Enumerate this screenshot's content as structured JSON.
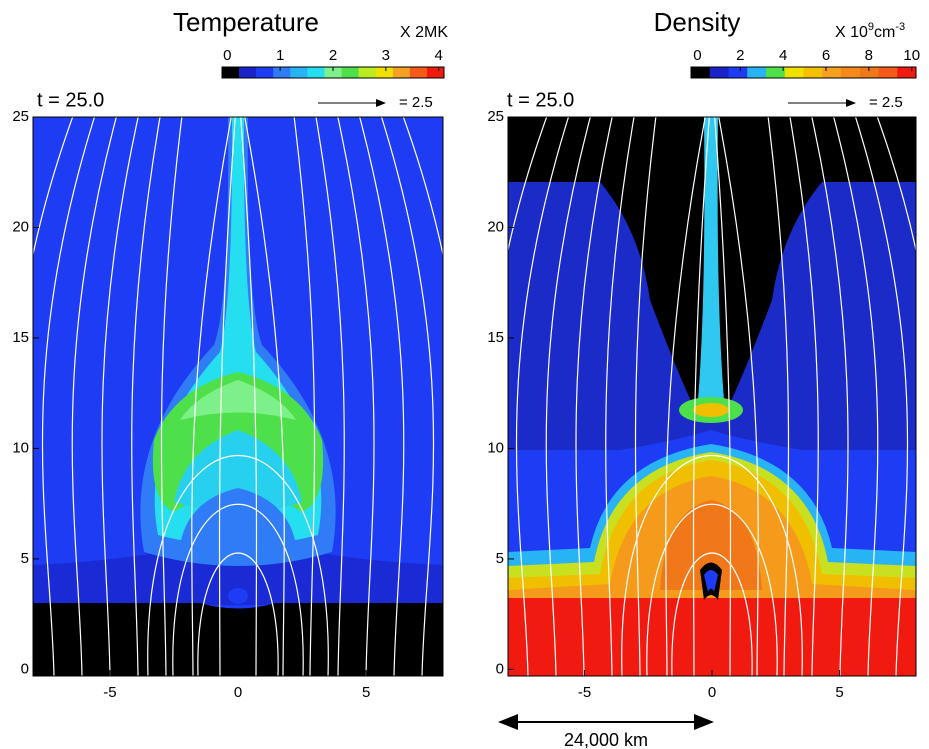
{
  "chart_data": [
    {
      "type": "contour",
      "title": "Temperature",
      "unit_parts": [
        "X 2MK"
      ],
      "time_label": "t = 25.0",
      "vector_scale_label": "= 2.5",
      "xlim": [
        -8,
        8
      ],
      "ylim": [
        -0.3,
        25
      ],
      "xticks": [
        -5,
        0,
        5
      ],
      "yticks": [
        0,
        5,
        10,
        15,
        20,
        25
      ],
      "colorbar": {
        "lim": [
          -0.1,
          4.1
        ],
        "ticks": [
          0,
          1,
          2,
          3,
          4
        ],
        "colors": [
          "#000000",
          "#1a22c8",
          "#1f3cf5",
          "#2f7cf6",
          "#28b4f4",
          "#25dff0",
          "#7ef08a",
          "#4ee04a",
          "#b8ec20",
          "#f0e000",
          "#f5a020",
          "#f55a18",
          "#f01a10"
        ]
      }
    },
    {
      "type": "contour",
      "title": "Density",
      "unit_parts": [
        "X 10",
        "9",
        "cm",
        "-3"
      ],
      "time_label": "t = 25.0",
      "vector_scale_label": "= 2.5",
      "xlim": [
        -8,
        8
      ],
      "ylim": [
        -0.3,
        25
      ],
      "xticks": [
        -5,
        0,
        5
      ],
      "yticks": [
        0,
        5,
        10,
        15,
        20,
        25
      ],
      "colorbar": {
        "lim": [
          -0.3,
          10.2
        ],
        "ticks": [
          0,
          2,
          4,
          6,
          8,
          10
        ],
        "colors": [
          "#000000",
          "#1a22c8",
          "#1f3cf5",
          "#28b4f4",
          "#4ee04a",
          "#f0e000",
          "#f5c000",
          "#f5a020",
          "#f58a1a",
          "#f07818",
          "#f55a18",
          "#f01a10"
        ]
      },
      "scale_bar_label": "24,000 km"
    }
  ]
}
